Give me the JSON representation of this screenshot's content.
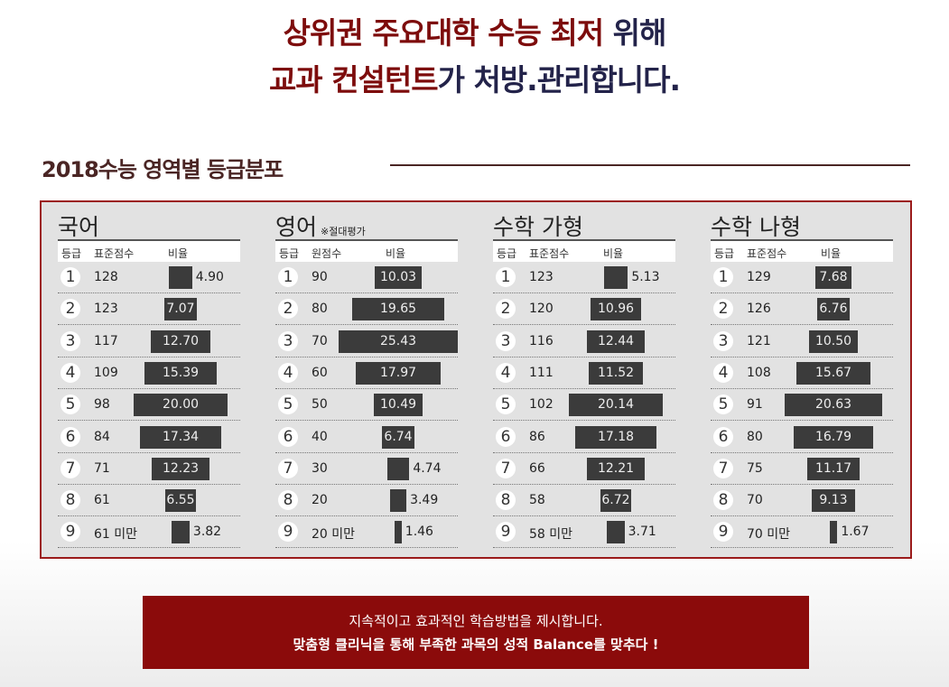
{
  "headline": {
    "line1_red": "상위권 주요대학 수능 최저",
    "line1_navy": "위해",
    "line2_red": "교과 컨설턴트",
    "line2_navy": "가 처방.관리합니다."
  },
  "section_title": "2018수능 영역별 등급분포",
  "panels": [
    {
      "title": "국어",
      "note": "",
      "headers": [
        "등급",
        "표준점수",
        "비율"
      ],
      "rows": [
        [
          "1",
          "128",
          4.9
        ],
        [
          "2",
          "123",
          7.07
        ],
        [
          "3",
          "117",
          12.7
        ],
        [
          "4",
          "109",
          15.39
        ],
        [
          "5",
          "98",
          20.0
        ],
        [
          "6",
          "84",
          17.34
        ],
        [
          "7",
          "71",
          12.23
        ],
        [
          "8",
          "61",
          6.55
        ],
        [
          "9",
          "61 미만",
          3.82
        ]
      ]
    },
    {
      "title": "영어",
      "note": "※절대평가",
      "headers": [
        "등급",
        "원점수",
        "비율"
      ],
      "rows": [
        [
          "1",
          "90",
          10.03
        ],
        [
          "2",
          "80",
          19.65
        ],
        [
          "3",
          "70",
          25.43
        ],
        [
          "4",
          "60",
          17.97
        ],
        [
          "5",
          "50",
          10.49
        ],
        [
          "6",
          "40",
          6.74
        ],
        [
          "7",
          "30",
          4.74
        ],
        [
          "8",
          "20",
          3.49
        ],
        [
          "9",
          "20 미만",
          1.46
        ]
      ]
    },
    {
      "title": "수학 가형",
      "note": "",
      "headers": [
        "등급",
        "표준점수",
        "비율"
      ],
      "rows": [
        [
          "1",
          "123",
          5.13
        ],
        [
          "2",
          "120",
          10.96
        ],
        [
          "3",
          "116",
          12.44
        ],
        [
          "4",
          "111",
          11.52
        ],
        [
          "5",
          "102",
          20.14
        ],
        [
          "6",
          "86",
          17.18
        ],
        [
          "7",
          "66",
          12.21
        ],
        [
          "8",
          "58",
          6.72
        ],
        [
          "9",
          "58 미만",
          3.71
        ]
      ]
    },
    {
      "title": "수학 나형",
      "note": "",
      "headers": [
        "등급",
        "표준점수",
        "비율"
      ],
      "rows": [
        [
          "1",
          "129",
          7.68
        ],
        [
          "2",
          "126",
          6.76
        ],
        [
          "3",
          "121",
          10.5
        ],
        [
          "4",
          "108",
          15.67
        ],
        [
          "5",
          "91",
          20.63
        ],
        [
          "6",
          "80",
          16.79
        ],
        [
          "7",
          "75",
          11.17
        ],
        [
          "8",
          "70",
          9.13
        ],
        [
          "9",
          "70 미만",
          1.67
        ]
      ]
    }
  ],
  "banner": {
    "line1": "지속적이고 효과적인 학습방법을 제시합니다.",
    "line2": "맞춤형 클리닉을 통해 부족한 과목의 성적 Balance를 맞추다 !"
  }
}
